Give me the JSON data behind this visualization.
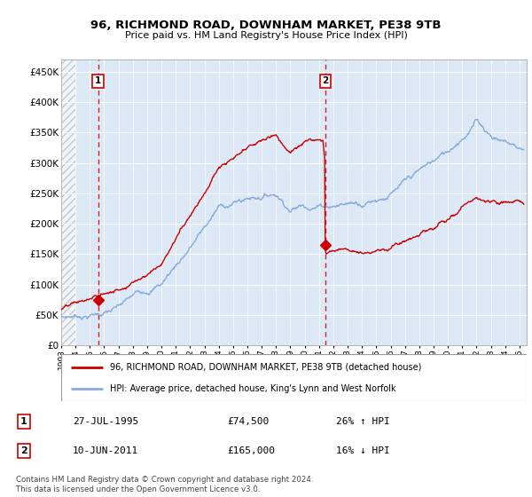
{
  "title": "96, RICHMOND ROAD, DOWNHAM MARKET, PE38 9TB",
  "subtitle": "Price paid vs. HM Land Registry's House Price Index (HPI)",
  "ylabel_ticks": [
    "£0",
    "£50K",
    "£100K",
    "£150K",
    "£200K",
    "£250K",
    "£300K",
    "£350K",
    "£400K",
    "£450K"
  ],
  "ytick_values": [
    0,
    50000,
    100000,
    150000,
    200000,
    250000,
    300000,
    350000,
    400000,
    450000
  ],
  "ylim": [
    0,
    470000
  ],
  "xlim_start": 1993.0,
  "xlim_end": 2025.5,
  "sale1_x": 1995.57,
  "sale1_y": 74500,
  "sale1_label": "1",
  "sale1_date": "27-JUL-1995",
  "sale1_price": "£74,500",
  "sale1_hpi": "26% ↑ HPI",
  "sale2_x": 2011.44,
  "sale2_y": 165000,
  "sale2_label": "2",
  "sale2_date": "10-JUN-2011",
  "sale2_price": "£165,000",
  "sale2_hpi": "16% ↓ HPI",
  "line_color_property": "#cc0000",
  "line_color_hpi": "#88aadd",
  "vline_color": "#cc0000",
  "legend_label_property": "96, RICHMOND ROAD, DOWNHAM MARKET, PE38 9TB (detached house)",
  "legend_label_hpi": "HPI: Average price, detached house, King's Lynn and West Norfolk",
  "footnote": "Contains HM Land Registry data © Crown copyright and database right 2024.\nThis data is licensed under the Open Government Licence v3.0.",
  "bg_color": "#dce8f5",
  "grid_color": "#ffffff"
}
